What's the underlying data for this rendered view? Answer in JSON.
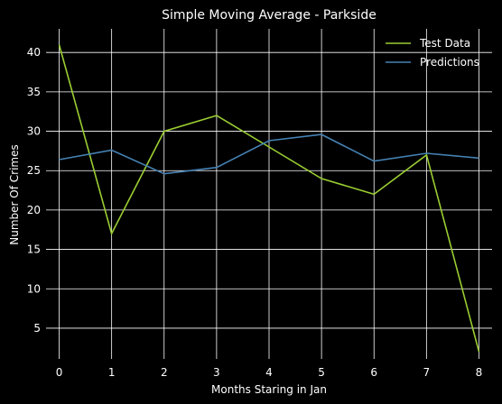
{
  "chart_data": {
    "type": "line",
    "title": "Simple Moving Average - Parkside",
    "xlabel": "Months Staring in Jan",
    "ylabel": "Number Of Crimes",
    "x": [
      0,
      1,
      2,
      3,
      4,
      5,
      6,
      7,
      8
    ],
    "xlim": [
      -0.25,
      8.25
    ],
    "ylim": [
      1.1,
      43.0
    ],
    "xticks": [
      0,
      1,
      2,
      3,
      4,
      5,
      6,
      7,
      8
    ],
    "yticks": [
      5,
      10,
      15,
      20,
      25,
      30,
      35,
      40
    ],
    "grid": true,
    "legend_position": "top-right",
    "series": [
      {
        "name": "Test Data",
        "color": "#9acd32",
        "values": [
          41,
          17,
          30,
          32,
          28,
          24,
          22,
          27,
          2
        ]
      },
      {
        "name": "Predictions",
        "color": "#4682b4",
        "values": [
          26.4,
          27.6,
          24.6,
          25.4,
          28.8,
          29.6,
          26.2,
          27.2,
          26.6
        ]
      }
    ]
  }
}
